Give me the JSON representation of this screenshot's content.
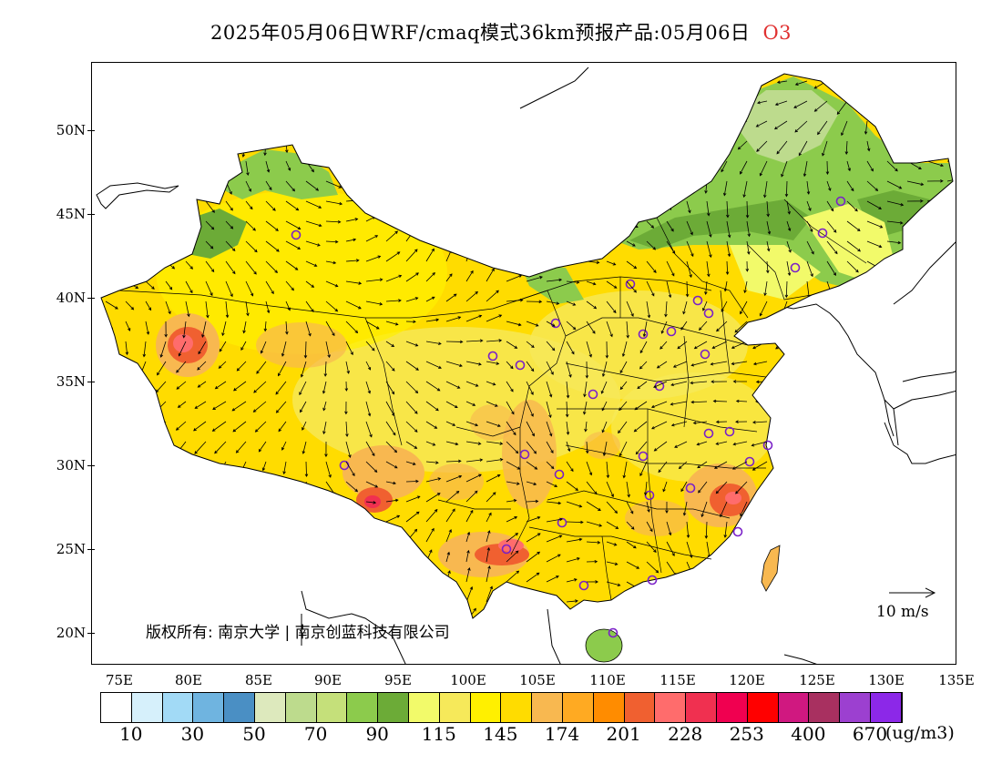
{
  "title": {
    "text": "2025年05月06日WRF/cmaq模式36km预报产品:05月06日",
    "pollutant": "O3",
    "pollutant_color": "#e03030"
  },
  "lat_labels": [
    "50N",
    "45N",
    "40N",
    "35N",
    "30N",
    "25N",
    "20N"
  ],
  "lon_labels": [
    "75E",
    "80E",
    "85E",
    "90E",
    "95E",
    "100E",
    "105E",
    "110E",
    "115E",
    "120E",
    "125E",
    "130E",
    "135E"
  ],
  "copyright": "版权所有: 南京大学 | 南京创蓝科技有限公司",
  "wind_label": "10 m/s",
  "colorbar": {
    "colors": [
      "#ffffff",
      "#d6f0fb",
      "#a2daf6",
      "#6fb4e0",
      "#4a8fc4",
      "#dde9bd",
      "#bddb8d",
      "#c5e07a",
      "#8ccb4c",
      "#6cab37",
      "#f2fa6a",
      "#f6e95a",
      "#fff000",
      "#ffdc00",
      "#f8b850",
      "#ffaa22",
      "#ff8c00",
      "#f06030",
      "#ff6c6c",
      "#f03050",
      "#f00050",
      "#ff0000",
      "#d01880",
      "#a83060",
      "#9c40d0",
      "#8c28e8"
    ],
    "labels": [
      "10",
      "30",
      "50",
      "70",
      "90",
      "115",
      "145",
      "174",
      "201",
      "228",
      "253",
      "400",
      "670"
    ],
    "unit": "(ug/m3)"
  }
}
